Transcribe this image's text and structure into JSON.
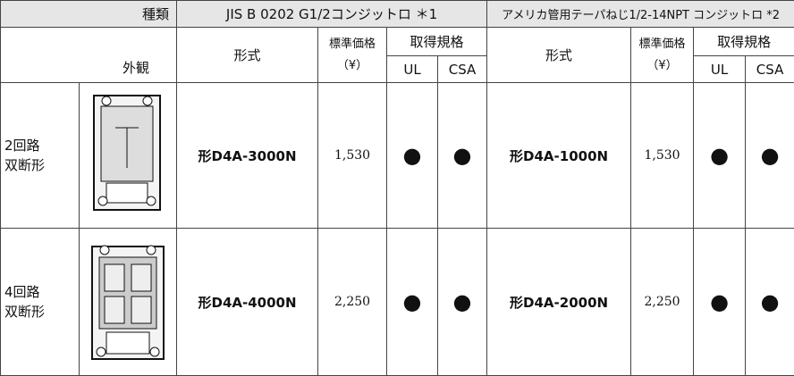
{
  "header": {
    "type_label": "種類",
    "appearance_label": "外観"
  },
  "groups": [
    {
      "title": "JIS B 0202 G1/2コンジットロ ＊1",
      "model": "形式",
      "price": "標準価格",
      "price_unit": "（¥）",
      "standards": "取得規格",
      "ul": "UL",
      "csa": "CSA"
    },
    {
      "title": "アメリカ管用テーパねじ1/2-14NPT コンジットロ *2",
      "model": "形式",
      "price": "標準価格",
      "price_unit": "（¥）",
      "standards": "取得規格",
      "ul": "UL",
      "csa": "CSA"
    }
  ],
  "rows": [
    {
      "name": [
        "2回路",
        "双断形"
      ],
      "cells": [
        {
          "model": "形D4A-3000N",
          "price": "1,530",
          "ul": "●",
          "csa": "●"
        },
        {
          "model": "形D4A-1000N",
          "price": "1,530",
          "ul": "●",
          "csa": "●"
        }
      ]
    },
    {
      "name": [
        "4回路",
        "双断形"
      ],
      "cells": [
        {
          "model": "形D4A-4000N",
          "price": "2,250",
          "ul": "●",
          "csa": "●"
        },
        {
          "model": "形D4A-2000N",
          "price": "2,250",
          "ul": "●",
          "csa": "●"
        }
      ]
    }
  ]
}
